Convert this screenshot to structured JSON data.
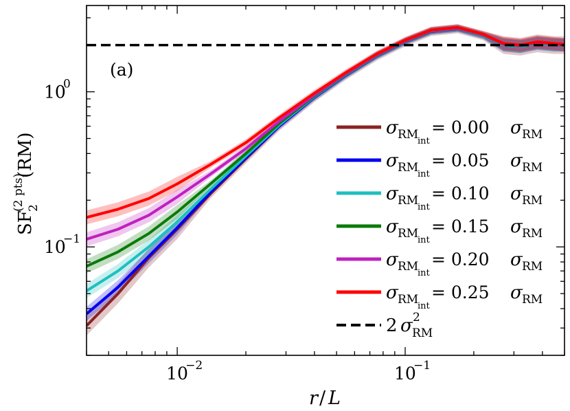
{
  "chart_data": {
    "type": "line",
    "panel_label": "(a)",
    "xlabel": "r/L",
    "ylabel": "SF₂⁽²ᵖᵗˢ⁾(RM)",
    "xscale": "log",
    "yscale": "log",
    "xlim": [
      0.004,
      0.5
    ],
    "ylim": [
      0.02,
      3.6
    ],
    "x_ticks": [
      {
        "value": 0.01,
        "base": "10",
        "exp": "−2"
      },
      {
        "value": 0.1,
        "base": "10",
        "exp": "−1"
      }
    ],
    "y_ticks": [
      {
        "value": 0.1,
        "base": "10",
        "exp": "−1"
      },
      {
        "value": 1.0,
        "base": "10",
        "exp": "0"
      }
    ],
    "legend_position": "lower-right",
    "reference_line": {
      "name": "2 σ²RM",
      "value": 2.0,
      "color": "#000000",
      "style": "dashed",
      "label_parts": {
        "coef": "2 σ",
        "sup": "2",
        "sub": "RM"
      }
    },
    "x": [
      0.004,
      0.0055,
      0.0075,
      0.01,
      0.014,
      0.02,
      0.028,
      0.04,
      0.055,
      0.075,
      0.1,
      0.13,
      0.17,
      0.22,
      0.27,
      0.32,
      0.38,
      0.45,
      0.5
    ],
    "series": [
      {
        "name": "σRMint = 0.00 σRM",
        "label_parts": {
          "value": "0.00"
        },
        "color": "#8b2323",
        "values": [
          0.031,
          0.05,
          0.085,
          0.13,
          0.22,
          0.37,
          0.6,
          0.92,
          1.28,
          1.7,
          2.1,
          2.45,
          2.55,
          2.3,
          2.0,
          1.95,
          2.05,
          2.0,
          2.0
        ],
        "band": 0.07
      },
      {
        "name": "σRMint = 0.05 σRM",
        "label_parts": {
          "value": "0.05"
        },
        "color": "#0000ee",
        "values": [
          0.037,
          0.055,
          0.087,
          0.133,
          0.225,
          0.375,
          0.6,
          0.92,
          1.28,
          1.7,
          2.1,
          2.45,
          2.55,
          2.3,
          2.0,
          1.95,
          2.05,
          2.0,
          2.0
        ],
        "band": 0.05
      },
      {
        "name": "σRMint = 0.10 σRM",
        "label_parts": {
          "value": "0.10"
        },
        "color": "#1fbfbf",
        "values": [
          0.052,
          0.07,
          0.1,
          0.145,
          0.235,
          0.385,
          0.61,
          0.93,
          1.29,
          1.71,
          2.11,
          2.46,
          2.56,
          2.3,
          2.0,
          1.95,
          2.05,
          2.0,
          2.0
        ],
        "band": 0.05
      },
      {
        "name": "σRMint = 0.15 σRM",
        "label_parts": {
          "value": "0.15"
        },
        "color": "#0a7a0a",
        "values": [
          0.075,
          0.093,
          0.122,
          0.168,
          0.255,
          0.4,
          0.625,
          0.94,
          1.3,
          1.72,
          2.12,
          2.47,
          2.57,
          2.32,
          2.02,
          1.97,
          2.07,
          2.02,
          2.0
        ],
        "band": 0.05
      },
      {
        "name": "σRMint = 0.20 σRM",
        "label_parts": {
          "value": "0.20"
        },
        "color": "#c020c0",
        "values": [
          0.112,
          0.13,
          0.16,
          0.21,
          0.295,
          0.43,
          0.645,
          0.955,
          1.31,
          1.73,
          2.13,
          2.48,
          2.58,
          2.33,
          2.03,
          1.98,
          2.08,
          2.03,
          2.01
        ],
        "band": 0.05
      },
      {
        "name": "σRMint = 0.25 σRM",
        "label_parts": {
          "value": "0.25"
        },
        "color": "#ff0000",
        "values": [
          0.155,
          0.175,
          0.205,
          0.255,
          0.34,
          0.47,
          0.68,
          0.98,
          1.33,
          1.75,
          2.15,
          2.5,
          2.6,
          2.35,
          2.05,
          2.0,
          2.1,
          2.05,
          2.02
        ],
        "band": 0.05
      }
    ],
    "legend_parts": {
      "sigma": "σ",
      "rm": "RM",
      "int": "int",
      "equals": " = "
    }
  }
}
